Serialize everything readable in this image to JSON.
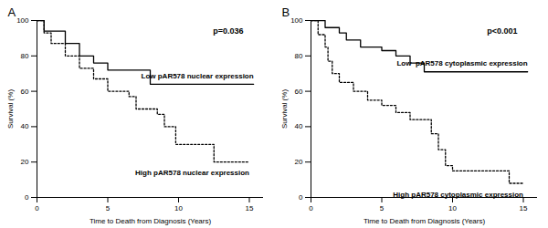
{
  "chart_data": [
    {
      "type": "line",
      "title": "A",
      "annotation": "p=0.036",
      "x_label": "Time to Death from Diagnosis (Years)",
      "y_label": "Survival (%)",
      "xlim": [
        0,
        16
      ],
      "xticks": [
        0,
        5,
        10,
        15
      ],
      "ylim": [
        0,
        100
      ],
      "yticks": [
        0,
        20,
        40,
        60,
        80,
        100
      ],
      "series": [
        {
          "name": "Low pAR578 nuclear expression",
          "color": "#000000",
          "line_style": "solid",
          "x": [
            0,
            0.5,
            2,
            3,
            4,
            5,
            8,
            15.3
          ],
          "values": [
            100,
            94,
            87,
            80,
            76,
            72,
            64,
            64
          ]
        },
        {
          "name": "High pAR578 nuclear expression",
          "color": "#000000",
          "line_style": "dotted",
          "x": [
            0,
            0.5,
            1,
            2,
            3,
            4,
            5,
            6.5,
            7,
            8.5,
            9,
            9.8,
            12.5,
            15
          ],
          "values": [
            100,
            93,
            87,
            80,
            73,
            67,
            60,
            57,
            50,
            47,
            40,
            30,
            20,
            20
          ]
        }
      ]
    },
    {
      "type": "line",
      "title": "B",
      "annotation": "p<0.001",
      "x_label": "Time to Death from Diagnosis (Years)",
      "y_label": "Survival (%)",
      "xlim": [
        0,
        16
      ],
      "xticks": [
        0,
        5,
        10,
        15
      ],
      "ylim": [
        0,
        100
      ],
      "yticks": [
        0,
        20,
        40,
        60,
        80,
        100
      ],
      "series": [
        {
          "name": "Low  pAR578 cytoplasmic expression",
          "color": "#000000",
          "line_style": "solid",
          "x": [
            0,
            1,
            2,
            2.5,
            3.5,
            5,
            6,
            7,
            8,
            15.3
          ],
          "values": [
            100,
            96,
            93,
            89,
            85,
            83,
            80,
            76,
            71,
            71
          ]
        },
        {
          "name": "High pAR578 cytoplasmic expression",
          "color": "#000000",
          "line_style": "dotted",
          "x": [
            0,
            0.5,
            1,
            1.2,
            1.5,
            2,
            3,
            4,
            5,
            6,
            7,
            8.5,
            9,
            9.5,
            10,
            14,
            15
          ],
          "values": [
            100,
            92,
            85,
            77,
            70,
            65,
            60,
            55,
            52,
            48,
            44,
            36,
            27,
            18,
            15,
            8,
            8
          ]
        }
      ]
    }
  ]
}
